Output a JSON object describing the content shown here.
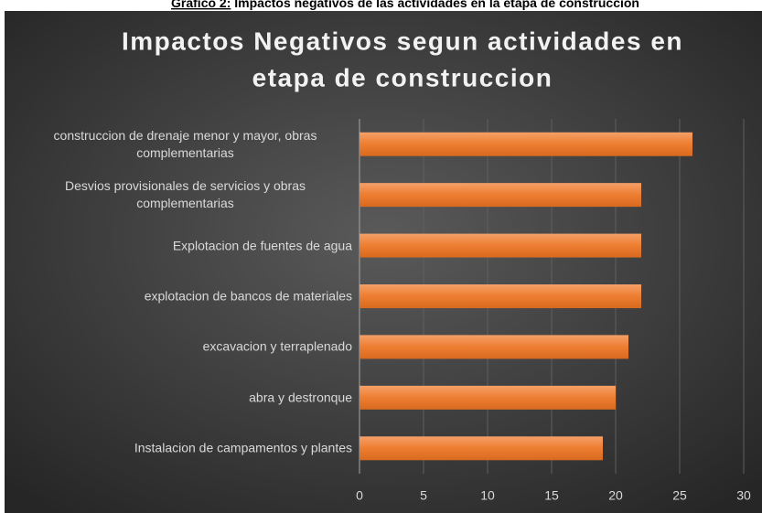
{
  "chart_data": {
    "type": "bar",
    "orientation": "horizontal",
    "caption_label": "Grafico 2:",
    "caption": "Impactos negativos de las actividades en la etapa de construccion",
    "title": [
      "Impactos Negativos segun actividades en",
      "etapa de construccion"
    ],
    "categories": [
      "construccion de drenaje menor y mayor, obras complementarias",
      "Desvios provisionales de servicios y obras complementarias",
      "Explotacion de fuentes de agua",
      "explotacion de bancos de materiales",
      "excavacion y terraplenado",
      "abra y destronque",
      "Instalacion de campamentos y plantes"
    ],
    "values": [
      26,
      22,
      22,
      22,
      21,
      20,
      19
    ],
    "color": "#ed7d31",
    "xlim": [
      0,
      30
    ],
    "xticks": [
      0,
      5,
      10,
      15,
      20,
      25,
      30
    ],
    "grid": true
  }
}
